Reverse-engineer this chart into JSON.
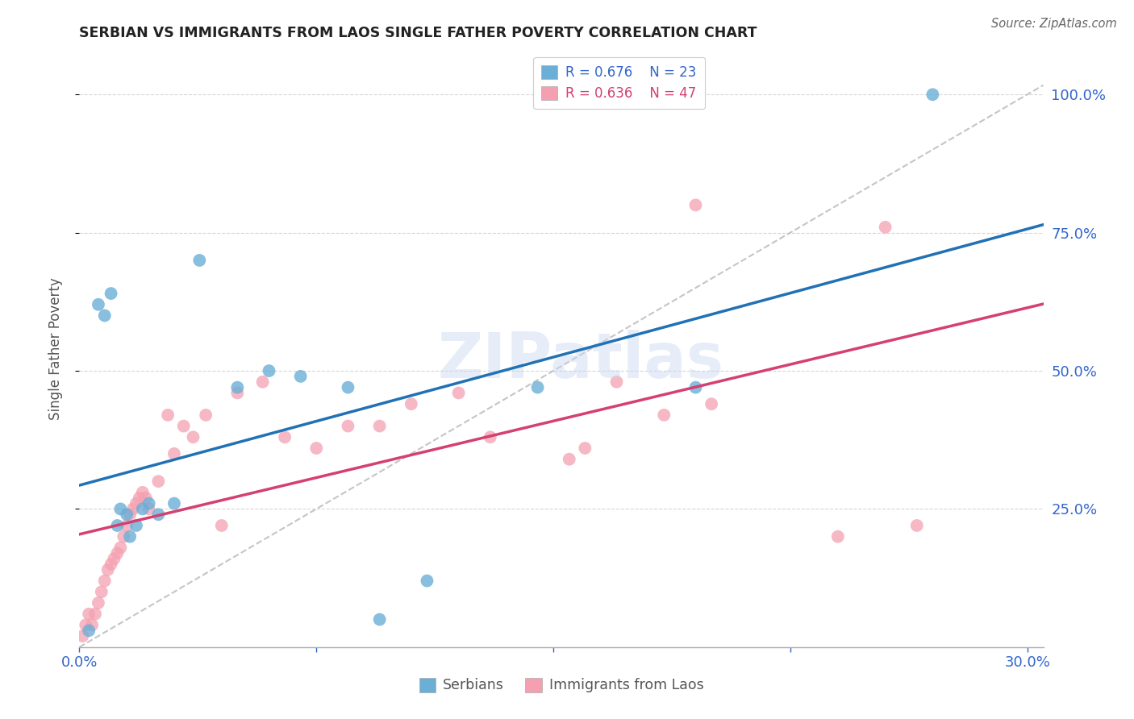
{
  "title": "SERBIAN VS IMMIGRANTS FROM LAOS SINGLE FATHER POVERTY CORRELATION CHART",
  "source": "Source: ZipAtlas.com",
  "ylabel": "Single Father Poverty",
  "xlim": [
    0.0,
    0.305
  ],
  "ylim": [
    0.0,
    1.08
  ],
  "xticks": [
    0.0,
    0.075,
    0.15,
    0.225,
    0.3
  ],
  "xticklabels": [
    "0.0%",
    "",
    "",
    "",
    "30.0%"
  ],
  "yticks_right": [
    0.25,
    0.5,
    0.75,
    1.0
  ],
  "yticklabels_right": [
    "25.0%",
    "50.0%",
    "75.0%",
    "100.0%"
  ],
  "group1_label": "Serbians",
  "group1_color": "#6baed6",
  "group1_line_color": "#2171b5",
  "group1_R": "0.676",
  "group1_N": "23",
  "group2_label": "Immigrants from Laos",
  "group2_color": "#f4a0b0",
  "group2_line_color": "#d44070",
  "group2_R": "0.636",
  "group2_N": "47",
  "ref_line_color": "#bbbbbb",
  "watermark": "ZIPatlas",
  "background_color": "#ffffff",
  "grid_color": "#cccccc",
  "text_color": "#3366cc",
  "title_color": "#222222",
  "source_color": "#666666",
  "serbian_x": [
    0.003,
    0.006,
    0.008,
    0.01,
    0.012,
    0.013,
    0.015,
    0.016,
    0.018,
    0.02,
    0.022,
    0.025,
    0.03,
    0.038,
    0.05,
    0.06,
    0.07,
    0.085,
    0.095,
    0.11,
    0.145,
    0.195,
    0.27
  ],
  "serbian_y": [
    0.03,
    0.62,
    0.6,
    0.64,
    0.22,
    0.25,
    0.24,
    0.2,
    0.22,
    0.25,
    0.26,
    0.24,
    0.26,
    0.7,
    0.47,
    0.5,
    0.49,
    0.47,
    0.05,
    0.12,
    0.47,
    0.47,
    1.0
  ],
  "laos_x": [
    0.001,
    0.002,
    0.003,
    0.004,
    0.005,
    0.006,
    0.007,
    0.008,
    0.009,
    0.01,
    0.011,
    0.012,
    0.013,
    0.014,
    0.015,
    0.016,
    0.017,
    0.018,
    0.019,
    0.02,
    0.021,
    0.022,
    0.025,
    0.028,
    0.03,
    0.033,
    0.036,
    0.04,
    0.045,
    0.05,
    0.058,
    0.065,
    0.075,
    0.085,
    0.095,
    0.105,
    0.12,
    0.13,
    0.155,
    0.16,
    0.17,
    0.185,
    0.195,
    0.2,
    0.24,
    0.255,
    0.265
  ],
  "laos_y": [
    0.02,
    0.04,
    0.06,
    0.04,
    0.06,
    0.08,
    0.1,
    0.12,
    0.14,
    0.15,
    0.16,
    0.17,
    0.18,
    0.2,
    0.22,
    0.24,
    0.25,
    0.26,
    0.27,
    0.28,
    0.27,
    0.25,
    0.3,
    0.42,
    0.35,
    0.4,
    0.38,
    0.42,
    0.22,
    0.46,
    0.48,
    0.38,
    0.36,
    0.4,
    0.4,
    0.44,
    0.46,
    0.38,
    0.34,
    0.36,
    0.48,
    0.42,
    0.8,
    0.44,
    0.2,
    0.76,
    0.22
  ]
}
